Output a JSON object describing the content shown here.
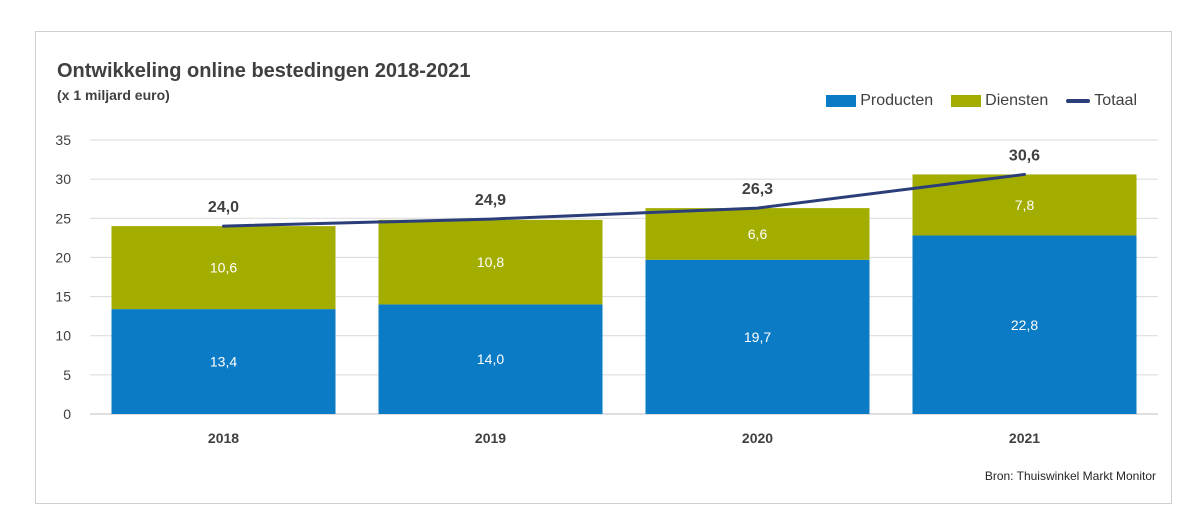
{
  "chart_data": {
    "type": "bar",
    "stacked": true,
    "title": "Ontwikkeling online bestedingen 2018-2021",
    "subtitle": "(x 1 miljard euro)",
    "categories": [
      "2018",
      "2019",
      "2020",
      "2021"
    ],
    "series": [
      {
        "name": "Producten",
        "kind": "bar",
        "color": "#0a7bc4",
        "values": [
          13.4,
          14.0,
          19.7,
          22.8
        ],
        "labels": [
          "13,4",
          "14,0",
          "19,7",
          "22,8"
        ]
      },
      {
        "name": "Diensten",
        "kind": "bar",
        "color": "#a2ad00",
        "values": [
          10.6,
          10.8,
          6.6,
          7.8
        ],
        "labels": [
          "10,6",
          "10,8",
          "6,6",
          "7,8"
        ]
      },
      {
        "name": "Totaal",
        "kind": "line",
        "color": "#2c3e7a",
        "values": [
          24.0,
          24.9,
          26.3,
          30.6
        ],
        "labels": [
          "24,0",
          "24,9",
          "26,3",
          "30,6"
        ]
      }
    ],
    "ylim": [
      0,
      35
    ],
    "yticks": [
      0,
      5,
      10,
      15,
      20,
      25,
      30,
      35
    ],
    "grid": true,
    "legend": "top-right",
    "xlabel": "",
    "ylabel": "",
    "source": "Bron: Thuiswinkel Markt Monitor"
  }
}
